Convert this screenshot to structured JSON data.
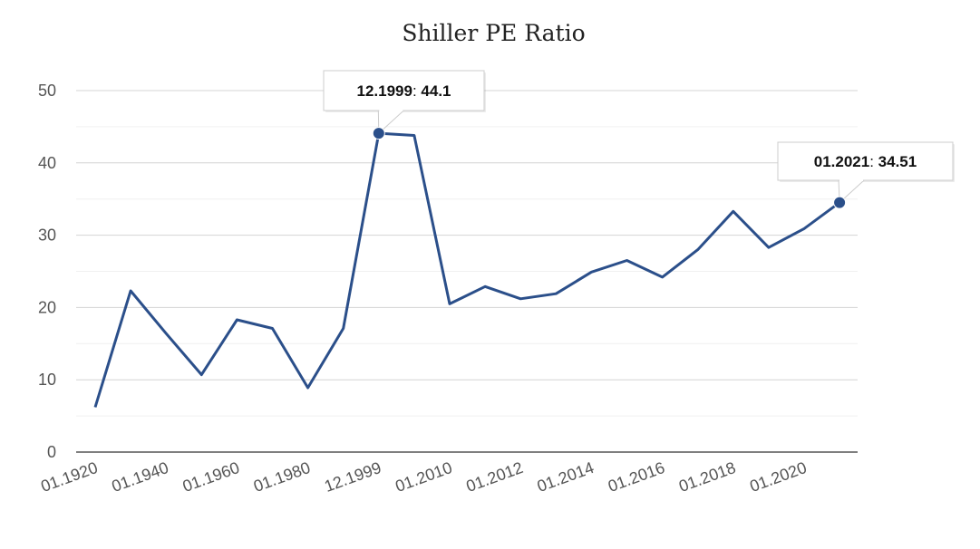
{
  "chart_data": {
    "type": "line",
    "title": "Shiller PE Ratio",
    "xlabel": "",
    "ylabel": "",
    "ylim": [
      0,
      50
    ],
    "yticks": [
      0,
      10,
      20,
      30,
      40,
      50
    ],
    "grid": true,
    "x_tick_labels": [
      "01.1920",
      "01.1940",
      "01.1960",
      "01.1980",
      "12.1999",
      "01.2010",
      "01.2012",
      "01.2014",
      "01.2016",
      "01.2018",
      "01.2020"
    ],
    "points": [
      {
        "x": "01.1920",
        "y": 6.2
      },
      {
        "x": "01.1930",
        "y": 22.3
      },
      {
        "x": "01.1940",
        "y": 16.4
      },
      {
        "x": "01.1950",
        "y": 10.7
      },
      {
        "x": "01.1960",
        "y": 18.3
      },
      {
        "x": "01.1970",
        "y": 17.1
      },
      {
        "x": "01.1980",
        "y": 8.9
      },
      {
        "x": "01.1990",
        "y": 17.1
      },
      {
        "x": "12.1999",
        "y": 44.1
      },
      {
        "x": "01.2000",
        "y": 43.8
      },
      {
        "x": "01.2010",
        "y": 20.5
      },
      {
        "x": "01.2011",
        "y": 22.9
      },
      {
        "x": "01.2012",
        "y": 21.2
      },
      {
        "x": "01.2013",
        "y": 21.9
      },
      {
        "x": "01.2014",
        "y": 24.9
      },
      {
        "x": "01.2015",
        "y": 26.5
      },
      {
        "x": "01.2016",
        "y": 24.2
      },
      {
        "x": "01.2017",
        "y": 28.0
      },
      {
        "x": "01.2018",
        "y": 33.3
      },
      {
        "x": "01.2019",
        "y": 28.3
      },
      {
        "x": "01.2020",
        "y": 30.9
      },
      {
        "x": "01.2021",
        "y": 34.51
      }
    ],
    "series": [
      {
        "color": "#2b4f8a"
      }
    ],
    "annotations": [
      {
        "date": "12.1999",
        "value": "44.1",
        "point_index": 8
      },
      {
        "date": "01.2021",
        "value": "34.51",
        "point_index": 21
      }
    ]
  }
}
